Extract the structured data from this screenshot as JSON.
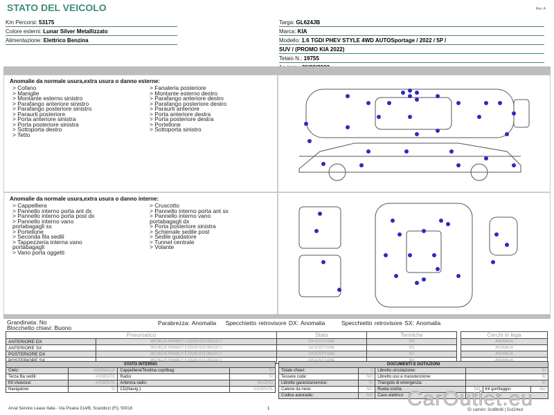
{
  "header": {
    "title": "STATO DEL VEICOLO",
    "rev": "Rev. A"
  },
  "vehicle_left": [
    {
      "label": "Km Percorsi: ",
      "value": "53175"
    },
    {
      "label": "Colore esterni: ",
      "value": "Lunar Silver Metallizzato"
    },
    {
      "label": "Alimentazione: ",
      "value": "Elettrico Benzina"
    }
  ],
  "vehicle_right": [
    {
      "label": "Targa: ",
      "value": "GL624JB"
    },
    {
      "label": "Marca: ",
      "value": "KIA"
    },
    {
      "label": "Modello: ",
      "value": "1.6 TGDI PHEV STYLE 4WD AUTOSportage / 2022 / 5P /"
    },
    {
      "label": "",
      "value": "SUV / (PROMO KIA 2022)"
    },
    {
      "label": "Telaio N.: ",
      "value": "19755"
    },
    {
      "label": "1a imm.: ",
      "value": "20/09/2022"
    }
  ],
  "exterior": {
    "heading": "Anomalie da normale usura,extra usura o danno esterne:",
    "col1": [
      "> Cofano",
      "> Maniglie",
      "> Montante esterno sinistro",
      "> Parafango anteriore sinistro",
      "> Parafango posteriore sinistro",
      "> Paraurti posteriore",
      "> Porta anteriore sinistra",
      "> Porta posteriore sinistra",
      "> Sottoporta destro",
      "> Tetto"
    ],
    "col2": [
      "> Fanaleria posteriore",
      "> Montante esterno destro",
      "> Parafango anteriore destro",
      "> Parafango posteriore destro",
      "> Paraurti anteriore",
      "> Porta anteriore destra",
      "> Porta posteriore destra",
      "> Portellone",
      "> Sottoporta sinistro"
    ]
  },
  "interior": {
    "heading": "Anomalie da normale usura,extra usura o danno interne:",
    "col1": [
      "> Cappelliera",
      "> Pannello interno porta ant dx",
      "> Pannello interno porta post dx",
      "> Pannello interno vano",
      "portabagagli sx",
      "> Portellone",
      "> Seconda fila sedili",
      "> Tappezzeria interna vano",
      "portabagagli",
      "> Vano porta oggetti"
    ],
    "col2": [
      "> Cruscotto",
      "> Pannello interno porta ant sx",
      "> Pannello interno vano",
      "portabagagli dx",
      "> Porta posteriore sinistra",
      "> Schienale sedile post",
      "> Sedile guidatore",
      "> Tunnel centrale",
      "> Volante"
    ]
  },
  "checks": {
    "grandinata": "Grandinata: No",
    "blocchetto": "Blocchetto chiavi: Buono",
    "parabrezza": "Parabrezza: Anomalia",
    "spec_dx": "Specchietto retrovisore DX: Anomalia",
    "spec_sx": "Specchietto retrovisore SX: Anomalia"
  },
  "tyres": {
    "headers": [
      "Pneumatico",
      "Stato",
      "Termiche"
    ],
    "rows": [
      [
        "ANTERIORE DX",
        "MICHELIN PRIMACY 4 235/50 R19 000/103 V",
        "DA SOSTITUIRE",
        "NO"
      ],
      [
        "ANTERIORE SX",
        "MICHELIN PRIMACY 4 235/50 R19 000/103 V",
        "DA SOSTITUIRE",
        "NO"
      ],
      [
        "POSTERIORE DX",
        "MICHELIN PRIMACY 4 235/50 R19 000/103 V",
        "DA SOSTITUIRE",
        "NO"
      ],
      [
        "POSTERIORE SX",
        "MICHELIN PRIMACY 4 235/50 R19 000/103 V",
        "DA SOSTITUIRE",
        "NO"
      ]
    ],
    "rims_header": "Cerchi in lega",
    "rims": [
      "ANOMALIA",
      "ANOMALIA",
      "ANOMALIA",
      "ANOMALIA"
    ]
  },
  "stato_interno": {
    "title": "STATO INTERNO",
    "rows": [
      [
        "Cielo:",
        "ANOMALIA",
        "Cappelliera/Tendina copribag:",
        "SI"
      ],
      [
        "Terza fila sedili:",
        "ASSENTE",
        "Radio:",
        "SI"
      ],
      [
        "Kit vivavoce:",
        "ASSENTE",
        "Antenna radio:",
        "BUONO"
      ],
      [
        "Navigatore:",
        "SI",
        "CD(Navig.):",
        "ASSENTE"
      ]
    ]
  },
  "documenti": {
    "title": "DOCUMENTI E DOTAZIONI",
    "rows": [
      [
        "Totale chiavi:",
        "2",
        "Libretto circolazione:",
        "SI"
      ],
      [
        "Tessere code:",
        "NO",
        "Libretto uso e manutenzione:",
        "SI"
      ],
      [
        "Libretto garanzia/service:",
        "SI",
        "Triangolo di emergenza:",
        "SI"
      ]
    ],
    "row4": [
      "Catene da neve:",
      "NO",
      "Ruota scorta:",
      "NO",
      "Kit gonfiaggio:",
      "NO"
    ],
    "row5": [
      "Codice autoradio:",
      "NO",
      "Cavo elettrico:",
      ""
    ]
  },
  "footer": {
    "address": "Arval Service Lease Italia - Via Pisana 314/B, Scandicci (FI), 50018",
    "page": "1",
    "id": "ID cartolo: 3cd8bd6 | 5cd24ed",
    "watermark": "CarOutlet.eu"
  },
  "colors": {
    "title": "#3a8a7a",
    "dot": "#2b2bbf",
    "bar": "#bdbdbd"
  }
}
